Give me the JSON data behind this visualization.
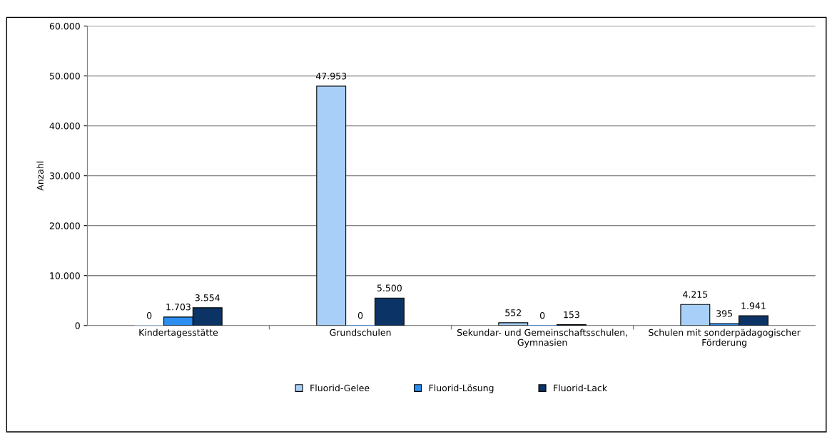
{
  "chart_data": {
    "type": "bar",
    "ylabel": "Anzahl",
    "categories": [
      "Kindertagesstätte",
      "Grundschulen",
      "Sekundar- und Gemeinschaftsschulen,\nGymnasien",
      "Schulen mit sonderpädagogischer\nFörderung"
    ],
    "series": [
      {
        "name": "Fluorid-Gelee",
        "color": "#a8cff8",
        "values": [
          0,
          47953,
          552,
          4215
        ],
        "value_labels": [
          "0",
          "47.953",
          "552",
          "4.215"
        ]
      },
      {
        "name": "Fluorid-Lösung",
        "color": "#2b8ef0",
        "values": [
          1703,
          0,
          0,
          395
        ],
        "value_labels": [
          "1.703",
          "0",
          "0",
          "395"
        ]
      },
      {
        "name": "Fluorid-Lack",
        "color": "#0b3366",
        "values": [
          3554,
          5500,
          153,
          1941
        ],
        "value_labels": [
          "3.554",
          "5.500",
          "153",
          "1.941"
        ]
      }
    ],
    "ylim": [
      0,
      60000
    ],
    "yticks": [
      {
        "value": 0,
        "label": "0"
      },
      {
        "value": 10000,
        "label": "10.000"
      },
      {
        "value": 20000,
        "label": "20.000"
      },
      {
        "value": 30000,
        "label": "30.000"
      },
      {
        "value": 40000,
        "label": "40.000"
      },
      {
        "value": 50000,
        "label": "50.000"
      },
      {
        "value": 60000,
        "label": "60.000"
      }
    ],
    "grid": "y",
    "legend": "bottom"
  }
}
